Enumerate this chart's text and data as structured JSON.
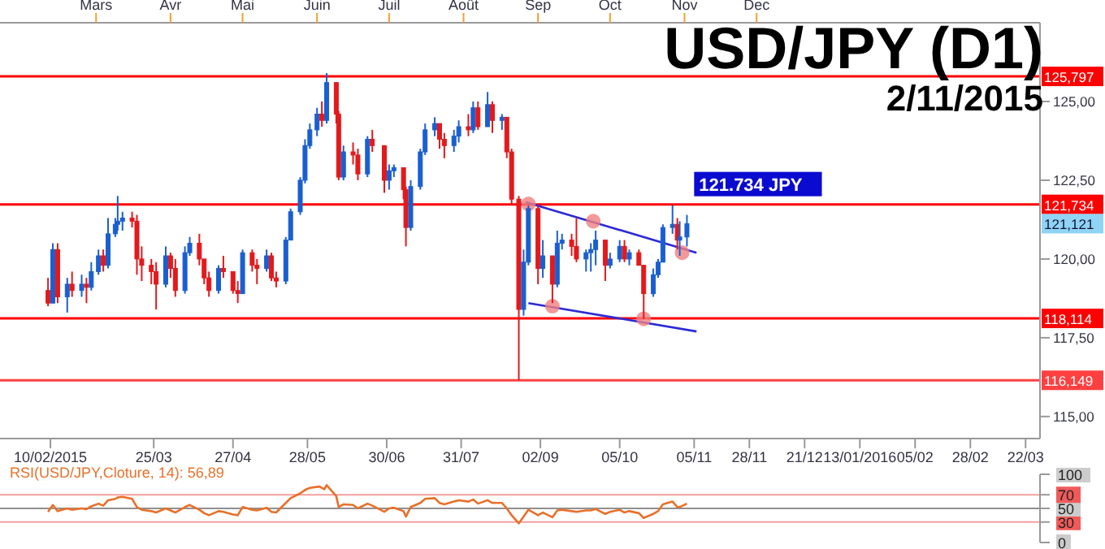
{
  "chart_data": [
    {
      "type": "candlestick",
      "title": "USD/JPY (D1)",
      "subtitle": "2/11/2015",
      "xlim": [
        "2015-01-20",
        "2016-03-28"
      ],
      "xticks": [
        {
          "value": "2015-02-10",
          "label": "10/02/2015"
        },
        {
          "value": "2015-03-25",
          "label": "25/03"
        },
        {
          "value": "2015-04-27",
          "label": "27/04"
        },
        {
          "value": "2015-05-28",
          "label": "28/05"
        },
        {
          "value": "2015-06-30",
          "label": "30/06"
        },
        {
          "value": "2015-07-31",
          "label": "31/07"
        },
        {
          "value": "2015-09-02",
          "label": "02/09"
        },
        {
          "value": "2015-10-05",
          "label": "05/10"
        },
        {
          "value": "2015-11-05",
          "label": "05/11"
        },
        {
          "value": "2015-11-28",
          "label": "28/11"
        },
        {
          "value": "2015-12-21",
          "label": "21/12"
        },
        {
          "value": "2016-01-13",
          "label": "13/01/2016"
        },
        {
          "value": "2016-02-05",
          "label": "05/02"
        },
        {
          "value": "2016-02-28",
          "label": "28/02"
        },
        {
          "value": "2016-03-22",
          "label": "22/03"
        }
      ],
      "x2lim": [
        "2015-01-20",
        "2016-03-28"
      ],
      "x2ticks": [
        {
          "value": "2015-03-01",
          "label": "Mars"
        },
        {
          "value": "2015-04-01",
          "label": "Avr"
        },
        {
          "value": "2015-05-01",
          "label": "Mai"
        },
        {
          "value": "2015-06-01",
          "label": "Juin"
        },
        {
          "value": "2015-07-01",
          "label": "Juil"
        },
        {
          "value": "2015-08-01",
          "label": "Août"
        },
        {
          "value": "2015-09-01",
          "label": "Sep"
        },
        {
          "value": "2015-10-01",
          "label": "Oct"
        },
        {
          "value": "2015-11-01",
          "label": "Nov"
        },
        {
          "value": "2015-12-01",
          "label": "Dec"
        }
      ],
      "ylim": [
        114.3,
        127.5
      ],
      "yticks": [
        {
          "value": 115,
          "label": "115,00"
        },
        {
          "value": 117.5,
          "label": "117,50"
        },
        {
          "value": 120,
          "label": "120,00"
        },
        {
          "value": 122.5,
          "label": "122,50"
        },
        {
          "value": 125,
          "label": "125,00"
        }
      ],
      "grid": false,
      "legend": false,
      "ref_lines": [
        {
          "axis": "y",
          "value": 125.797,
          "label": "125,797",
          "color": "#ff0000"
        },
        {
          "axis": "y",
          "value": 121.734,
          "label": "121,734",
          "color": "#ff0000"
        },
        {
          "axis": "y",
          "value": 118.114,
          "label": "118,114",
          "color": "#ff0000"
        },
        {
          "axis": "y",
          "value": 116.149,
          "label": "116,149",
          "color": "#ff4040"
        }
      ],
      "annotations": [
        {
          "text": "121.734 JPY",
          "x": "2015-11-05",
          "y": 121.734
        },
        "121,121"
      ],
      "series": [
        {
          "type": "candlestick",
          "x": [
            "2015-02-09",
            "2015-02-11",
            "2015-02-13",
            "2015-02-17",
            "2015-02-19",
            "2015-02-23",
            "2015-02-25",
            "2015-02-27",
            "2015-03-02",
            "2015-03-04",
            "2015-03-06",
            "2015-03-09",
            "2015-03-10",
            "2015-03-12",
            "2015-03-16",
            "2015-03-18",
            "2015-03-20",
            "2015-03-24",
            "2015-03-26",
            "2015-03-30",
            "2015-04-01",
            "2015-04-03",
            "2015-04-07",
            "2015-04-09",
            "2015-04-13",
            "2015-04-15",
            "2015-04-17",
            "2015-04-21",
            "2015-04-23",
            "2015-04-27",
            "2015-04-29",
            "2015-05-01",
            "2015-05-05",
            "2015-05-07",
            "2015-05-11",
            "2015-05-13",
            "2015-05-15",
            "2015-05-19",
            "2015-05-21",
            "2015-05-25",
            "2015-05-27",
            "2015-05-29",
            "2015-06-01",
            "2015-06-03",
            "2015-06-05",
            "2015-06-09",
            "2015-06-10",
            "2015-06-12",
            "2015-06-16",
            "2015-06-18",
            "2015-06-22",
            "2015-06-24",
            "2015-06-29",
            "2015-07-01",
            "2015-07-03",
            "2015-07-07",
            "2015-07-08",
            "2015-07-10",
            "2015-07-14",
            "2015-07-16",
            "2015-07-20",
            "2015-07-22",
            "2015-07-24",
            "2015-07-28",
            "2015-07-30",
            "2015-08-03",
            "2015-08-05",
            "2015-08-07",
            "2015-08-11",
            "2015-08-13",
            "2015-08-17",
            "2015-08-19",
            "2015-08-21",
            "2015-08-24",
            "2015-08-26",
            "2015-08-28",
            "2015-09-01",
            "2015-09-03",
            "2015-09-07",
            "2015-09-09",
            "2015-09-11",
            "2015-09-15",
            "2015-09-17",
            "2015-09-21",
            "2015-09-23",
            "2015-09-25",
            "2015-09-29",
            "2015-10-01",
            "2015-10-05",
            "2015-10-07",
            "2015-10-09",
            "2015-10-13",
            "2015-10-15",
            "2015-10-19",
            "2015-10-21",
            "2015-10-23",
            "2015-10-27",
            "2015-10-29",
            "2015-10-30",
            "2015-11-02"
          ],
          "ohlc": [
            [
              119.0,
              119.4,
              118.5,
              118.6
            ],
            [
              118.6,
              120.5,
              118.6,
              120.3
            ],
            [
              120.3,
              120.5,
              118.6,
              118.8
            ],
            [
              118.8,
              119.4,
              118.3,
              119.2
            ],
            [
              119.2,
              119.6,
              118.8,
              119.0
            ],
            [
              119.0,
              119.5,
              118.8,
              119.2
            ],
            [
              119.2,
              119.4,
              118.6,
              119.1
            ],
            [
              119.1,
              119.9,
              119.0,
              119.6
            ],
            [
              119.6,
              120.3,
              119.5,
              120.1
            ],
            [
              120.1,
              120.3,
              119.6,
              119.8
            ],
            [
              119.8,
              121.3,
              119.7,
              120.8
            ],
            [
              120.8,
              121.3,
              120.7,
              121.1
            ],
            [
              121.1,
              122.0,
              120.9,
              121.2
            ],
            [
              121.2,
              121.5,
              120.9,
              121.3
            ],
            [
              121.3,
              121.5,
              121.0,
              121.2
            ],
            [
              121.2,
              121.4,
              119.5,
              120.0
            ],
            [
              120.0,
              120.4,
              119.3,
              119.8
            ],
            [
              119.8,
              120.0,
              119.2,
              119.6
            ],
            [
              119.6,
              119.9,
              118.4,
              119.2
            ],
            [
              119.2,
              120.4,
              119.1,
              120.1
            ],
            [
              120.1,
              120.2,
              119.4,
              119.7
            ],
            [
              119.7,
              120.0,
              118.8,
              119.0
            ],
            [
              119.0,
              120.4,
              118.9,
              120.2
            ],
            [
              120.2,
              120.7,
              120.1,
              120.5
            ],
            [
              120.5,
              120.8,
              119.8,
              120.0
            ],
            [
              120.0,
              120.0,
              119.2,
              119.4
            ],
            [
              119.4,
              119.6,
              118.8,
              119.0
            ],
            [
              119.0,
              119.8,
              118.9,
              119.7
            ],
            [
              119.7,
              120.1,
              119.4,
              119.6
            ],
            [
              119.6,
              119.6,
              118.9,
              119.0
            ],
            [
              119.0,
              119.3,
              118.6,
              118.9
            ],
            [
              118.9,
              120.3,
              118.9,
              120.2
            ],
            [
              120.2,
              120.3,
              119.6,
              119.8
            ],
            [
              119.8,
              120.0,
              119.2,
              119.7
            ],
            [
              119.7,
              120.3,
              119.6,
              120.1
            ],
            [
              120.1,
              120.2,
              119.3,
              119.4
            ],
            [
              119.4,
              119.6,
              119.1,
              119.3
            ],
            [
              119.3,
              120.7,
              119.2,
              120.6
            ],
            [
              120.6,
              121.6,
              120.6,
              121.5
            ],
            [
              121.5,
              122.6,
              121.4,
              122.5
            ],
            [
              122.5,
              123.8,
              122.4,
              123.6
            ],
            [
              123.6,
              124.3,
              123.5,
              124.1
            ],
            [
              124.1,
              124.8,
              123.9,
              124.6
            ],
            [
              124.6,
              125.0,
              124.2,
              124.4
            ],
            [
              124.4,
              125.9,
              124.3,
              125.6
            ],
            [
              125.6,
              125.6,
              124.3,
              124.6
            ],
            [
              124.6,
              124.7,
              122.5,
              122.6
            ],
            [
              122.6,
              123.6,
              122.5,
              123.4
            ],
            [
              123.4,
              123.7,
              123.0,
              123.3
            ],
            [
              123.3,
              123.5,
              122.5,
              122.7
            ],
            [
              122.7,
              123.9,
              122.6,
              123.8
            ],
            [
              123.8,
              124.1,
              123.4,
              123.6
            ],
            [
              123.6,
              123.6,
              122.1,
              122.5
            ],
            [
              122.5,
              123.0,
              122.2,
              122.8
            ],
            [
              122.8,
              123.0,
              122.6,
              122.9
            ],
            [
              122.9,
              122.9,
              121.9,
              122.2
            ],
            [
              122.2,
              122.3,
              120.4,
              121.0
            ],
            [
              121.0,
              122.5,
              120.9,
              122.3
            ],
            [
              122.3,
              123.5,
              122.2,
              123.4
            ],
            [
              123.4,
              124.3,
              123.3,
              124.1
            ],
            [
              124.1,
              124.5,
              123.9,
              124.3
            ],
            [
              124.3,
              124.3,
              123.5,
              123.8
            ],
            [
              123.8,
              124.0,
              123.2,
              123.6
            ],
            [
              123.6,
              124.1,
              123.4,
              123.9
            ],
            [
              123.9,
              124.4,
              123.7,
              124.2
            ],
            [
              124.2,
              124.6,
              123.9,
              124.1
            ],
            [
              124.1,
              125.0,
              124.0,
              124.8
            ],
            [
              124.8,
              125.0,
              124.1,
              124.2
            ],
            [
              124.2,
              125.3,
              124.2,
              124.9
            ],
            [
              124.9,
              125.0,
              124.0,
              124.4
            ],
            [
              124.4,
              124.6,
              124.1,
              124.5
            ],
            [
              124.5,
              124.5,
              123.2,
              123.4
            ],
            [
              123.4,
              123.5,
              121.7,
              121.9
            ],
            [
              121.9,
              122.0,
              116.15,
              118.4
            ],
            [
              118.4,
              120.3,
              118.2,
              119.9
            ],
            [
              119.9,
              121.7,
              119.8,
              121.6
            ],
            [
              121.6,
              121.7,
              119.2,
              119.7
            ],
            [
              119.7,
              120.6,
              119.4,
              120.1
            ],
            [
              120.1,
              120.1,
              118.6,
              119.2
            ],
            [
              119.2,
              120.9,
              119.1,
              120.5
            ],
            [
              120.5,
              120.8,
              120.3,
              120.6
            ],
            [
              120.6,
              120.8,
              120.1,
              120.4
            ],
            [
              120.4,
              121.3,
              119.9,
              120.0
            ],
            [
              120.0,
              120.3,
              119.6,
              120.2
            ],
            [
              120.2,
              120.5,
              119.6,
              120.3
            ],
            [
              120.3,
              120.9,
              119.8,
              120.6
            ],
            [
              120.6,
              120.6,
              119.3,
              119.8
            ],
            [
              119.8,
              120.2,
              119.7,
              120.0
            ],
            [
              120.0,
              120.6,
              119.9,
              120.4
            ],
            [
              120.4,
              120.6,
              119.9,
              120.0
            ],
            [
              120.0,
              120.3,
              119.8,
              120.2
            ],
            [
              120.2,
              120.3,
              119.8,
              119.8
            ],
            [
              119.8,
              119.8,
              118.1,
              118.9
            ],
            [
              118.9,
              119.7,
              118.8,
              119.5
            ],
            [
              119.5,
              120.0,
              119.4,
              119.9
            ],
            [
              119.9,
              121.1,
              119.9,
              121.0
            ],
            [
              121.0,
              121.7,
              120.8,
              121.1
            ],
            [
              121.1,
              121.3,
              120.3,
              120.6
            ],
            [
              120.6,
              121.2,
              120.1,
              120.7
            ],
            [
              120.7,
              121.4,
              120.4,
              121.121
            ]
          ],
          "colors": [
            "#e3191c",
            "#1a5fd0",
            "#e3191c",
            "#1a5fd0",
            "#e3191c",
            "#1a5fd0",
            "#e3191c",
            "#1a5fd0",
            "#1a5fd0",
            "#e3191c",
            "#1a5fd0",
            "#1a5fd0",
            "#1a5fd0",
            "#1a5fd0",
            "#e3191c",
            "#e3191c",
            "#e3191c",
            "#e3191c",
            "#e3191c",
            "#1a5fd0",
            "#e3191c",
            "#e3191c",
            "#1a5fd0",
            "#1a5fd0",
            "#e3191c",
            "#e3191c",
            "#e3191c",
            "#1a5fd0",
            "#e3191c",
            "#e3191c",
            "#e3191c",
            "#1a5fd0",
            "#e3191c",
            "#e3191c",
            "#1a5fd0",
            "#e3191c",
            "#e3191c",
            "#1a5fd0",
            "#1a5fd0",
            "#1a5fd0",
            "#1a5fd0",
            "#1a5fd0",
            "#1a5fd0",
            "#e3191c",
            "#1a5fd0",
            "#e3191c",
            "#e3191c",
            "#1a5fd0",
            "#e3191c",
            "#e3191c",
            "#1a5fd0",
            "#e3191c",
            "#e3191c",
            "#1a5fd0",
            "#1a5fd0",
            "#e3191c",
            "#e3191c",
            "#1a5fd0",
            "#1a5fd0",
            "#1a5fd0",
            "#1a5fd0",
            "#e3191c",
            "#e3191c",
            "#1a5fd0",
            "#1a5fd0",
            "#e3191c",
            "#1a5fd0",
            "#e3191c",
            "#1a5fd0",
            "#e3191c",
            "#1a5fd0",
            "#e3191c",
            "#e3191c",
            "#e3191c",
            "#1a5fd0",
            "#1a5fd0",
            "#e3191c",
            "#1a5fd0",
            "#e3191c",
            "#1a5fd0",
            "#1a5fd0",
            "#e3191c",
            "#e3191c",
            "#1a5fd0",
            "#1a5fd0",
            "#1a5fd0",
            "#e3191c",
            "#1a5fd0",
            "#1a5fd0",
            "#e3191c",
            "#1a5fd0",
            "#e3191c",
            "#e3191c",
            "#1a5fd0",
            "#1a5fd0",
            "#1a5fd0",
            "#1a5fd0",
            "#e3191c",
            "#1a5fd0",
            "#1a5fd0"
          ]
        },
        {
          "type": "line",
          "color": "#2b2bd6",
          "x": [
            "2015-08-27",
            "2015-11-06"
          ],
          "values": [
            121.8,
            120.2
          ]
        },
        {
          "type": "line",
          "color": "#2b2bd6",
          "x": [
            "2015-08-28",
            "2015-11-06"
          ],
          "values": [
            118.6,
            117.7
          ]
        },
        {
          "type": "scatter",
          "marker": "circle",
          "color": "#f08080",
          "x": [
            "2015-08-28",
            "2015-09-24",
            "2015-10-31",
            "2015-09-07",
            "2015-10-15"
          ],
          "values": [
            121.75,
            121.2,
            120.2,
            118.5,
            118.1
          ]
        }
      ]
    },
    {
      "type": "line",
      "title": "RSI(USD/JPY,Cloture, 14): 56,89",
      "tick_labels": "y",
      "grid": false,
      "legend": false,
      "xlim": [
        "2015-01-20",
        "2016-03-28"
      ],
      "ylim": [
        0,
        100
      ],
      "yticks": [
        0,
        30,
        50,
        70,
        100
      ],
      "ref_lines": [
        {
          "axis": "y",
          "value": 70,
          "color": "#f4a0a0"
        },
        {
          "axis": "y",
          "value": 50,
          "color": "#909090"
        },
        {
          "axis": "y",
          "value": 30,
          "color": "#f4a0a0"
        }
      ],
      "series": [
        {
          "color": "#e8702a",
          "x": [
            "2015-02-09",
            "2015-02-11",
            "2015-02-13",
            "2015-02-17",
            "2015-02-19",
            "2015-02-23",
            "2015-02-25",
            "2015-02-27",
            "2015-03-02",
            "2015-03-04",
            "2015-03-06",
            "2015-03-09",
            "2015-03-10",
            "2015-03-12",
            "2015-03-16",
            "2015-03-18",
            "2015-03-20",
            "2015-03-24",
            "2015-03-26",
            "2015-03-30",
            "2015-04-01",
            "2015-04-03",
            "2015-04-07",
            "2015-04-09",
            "2015-04-13",
            "2015-04-15",
            "2015-04-17",
            "2015-04-21",
            "2015-04-23",
            "2015-04-27",
            "2015-04-29",
            "2015-05-01",
            "2015-05-05",
            "2015-05-07",
            "2015-05-11",
            "2015-05-13",
            "2015-05-15",
            "2015-05-19",
            "2015-05-21",
            "2015-05-25",
            "2015-05-27",
            "2015-05-29",
            "2015-06-02",
            "2015-06-04",
            "2015-06-05",
            "2015-06-09",
            "2015-06-10",
            "2015-06-12",
            "2015-06-16",
            "2015-06-18",
            "2015-06-22",
            "2015-06-24",
            "2015-06-29",
            "2015-07-01",
            "2015-07-03",
            "2015-07-07",
            "2015-07-08",
            "2015-07-10",
            "2015-07-14",
            "2015-07-16",
            "2015-07-20",
            "2015-07-22",
            "2015-07-24",
            "2015-07-28",
            "2015-07-30",
            "2015-08-03",
            "2015-08-05",
            "2015-08-07",
            "2015-08-11",
            "2015-08-13",
            "2015-08-17",
            "2015-08-19",
            "2015-08-21",
            "2015-08-24",
            "2015-08-26",
            "2015-08-28",
            "2015-09-01",
            "2015-09-03",
            "2015-09-07",
            "2015-09-09",
            "2015-09-11",
            "2015-09-15",
            "2015-09-17",
            "2015-09-21",
            "2015-09-23",
            "2015-09-25",
            "2015-09-29",
            "2015-10-01",
            "2015-10-05",
            "2015-10-07",
            "2015-10-09",
            "2015-10-13",
            "2015-10-15",
            "2015-10-19",
            "2015-10-21",
            "2015-10-23",
            "2015-10-27",
            "2015-10-29",
            "2015-10-30",
            "2015-11-02"
          ],
          "values": [
            45,
            55,
            46,
            50,
            48,
            50,
            49,
            53,
            57,
            54,
            62,
            64,
            66,
            67,
            64,
            52,
            48,
            46,
            44,
            50,
            47,
            44,
            52,
            55,
            48,
            43,
            40,
            46,
            45,
            41,
            40,
            52,
            48,
            47,
            51,
            45,
            44,
            58,
            65,
            72,
            77,
            80,
            82,
            78,
            84,
            68,
            52,
            56,
            55,
            50,
            57,
            54,
            45,
            50,
            51,
            46,
            38,
            52,
            58,
            64,
            65,
            58,
            56,
            60,
            62,
            60,
            63,
            57,
            62,
            58,
            58,
            50,
            40,
            28,
            38,
            48,
            40,
            44,
            37,
            47,
            48,
            46,
            45,
            47,
            47,
            49,
            42,
            45,
            48,
            44,
            46,
            43,
            36,
            42,
            46,
            56,
            60,
            52,
            52,
            57
          ]
        }
      ]
    }
  ]
}
